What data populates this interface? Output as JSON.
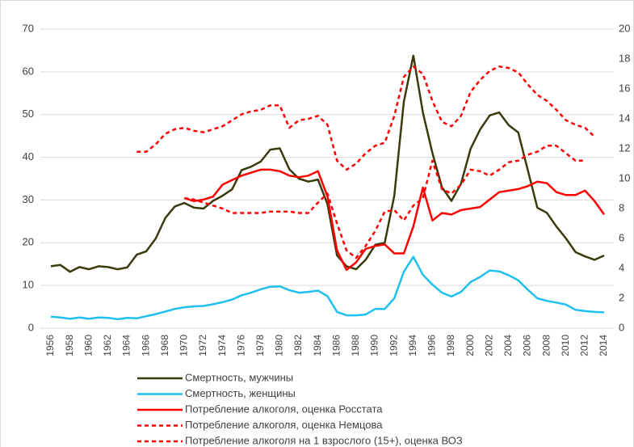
{
  "chart_data": {
    "type": "line",
    "categories": [
      "1956",
      null,
      "1958",
      null,
      "1960",
      null,
      "1962",
      null,
      "1964",
      null,
      "1966",
      null,
      "1968",
      null,
      "1970",
      null,
      "1972",
      null,
      "1974",
      null,
      "1976",
      null,
      "1978",
      null,
      "1980",
      null,
      "1982",
      null,
      "1984",
      null,
      "1986",
      null,
      "1988",
      null,
      "1990",
      null,
      "1992",
      null,
      "1994",
      null,
      "1996",
      null,
      "1998",
      null,
      "2000",
      null,
      "2002",
      null,
      "2004",
      null,
      "2006",
      null,
      "2008",
      null,
      "2010",
      null,
      "2012",
      null,
      "2014"
    ],
    "series": [
      {
        "name": "Смертность, мужчины",
        "color": "#3b3a0c",
        "dash": "solid",
        "values": [
          14.5,
          14.8,
          13.2,
          14.3,
          13.8,
          14.5,
          14.3,
          13.8,
          14.2,
          17.2,
          18.0,
          21.0,
          25.8,
          28.5,
          29.3,
          28.2,
          28.0,
          29.8,
          31.0,
          32.5,
          37.0,
          37.8,
          39.0,
          41.8,
          42.1,
          37.2,
          35.0,
          34.3,
          34.8,
          29.0,
          17.0,
          14.5,
          13.8,
          16.0,
          19.5,
          20.0,
          31.0,
          53.0,
          63.8,
          50.5,
          41.0,
          33.0,
          29.8,
          33.8,
          42.0,
          46.5,
          49.8,
          50.5,
          47.5,
          45.8,
          37.0,
          28.2,
          27.0,
          23.8,
          21.0,
          17.8,
          16.8,
          16.0,
          17.0
        ]
      },
      {
        "name": "Смертность, женщины",
        "color": "#1fc0f0",
        "dash": "solid",
        "values": [
          2.7,
          2.5,
          2.2,
          2.5,
          2.2,
          2.5,
          2.4,
          2.1,
          2.4,
          2.3,
          2.8,
          3.3,
          3.9,
          4.5,
          4.9,
          5.1,
          5.2,
          5.6,
          6.1,
          6.7,
          7.7,
          8.3,
          9.1,
          9.7,
          9.8,
          8.9,
          8.3,
          8.5,
          8.8,
          7.5,
          3.8,
          3.0,
          3.0,
          3.2,
          4.5,
          4.5,
          7.0,
          13.2,
          16.7,
          12.5,
          10.2,
          8.3,
          7.4,
          8.5,
          10.8,
          12.0,
          13.5,
          13.3,
          12.4,
          11.2,
          9.0,
          7.0,
          6.4,
          6.0,
          5.5,
          4.3,
          4.0,
          3.8,
          3.7
        ]
      },
      {
        "name": "Потребление алкоголя, оценка Росстата",
        "color": "#ff0000",
        "dash": "solid",
        "axis": "y2",
        "values": [
          null,
          null,
          null,
          null,
          null,
          null,
          null,
          null,
          null,
          null,
          null,
          null,
          null,
          null,
          8.7,
          8.5,
          8.6,
          8.8,
          9.6,
          9.9,
          10.2,
          10.4,
          10.6,
          10.6,
          10.5,
          10.2,
          10.1,
          10.2,
          10.5,
          8.8,
          5.2,
          3.9,
          4.4,
          5.3,
          5.5,
          5.6,
          5.0,
          5.0,
          6.8,
          9.4,
          7.2,
          7.7,
          7.6,
          7.9,
          8.0,
          8.1,
          8.6,
          9.1,
          9.2,
          9.3,
          9.5,
          9.8,
          9.7,
          9.1,
          8.9,
          8.9,
          9.2,
          8.5,
          7.6
        ]
      },
      {
        "name": "Потребление алкоголя, оценка Немцова",
        "color": "#ff0000",
        "dash": "dashed",
        "axis": "y2",
        "values": [
          null,
          null,
          null,
          null,
          null,
          null,
          null,
          null,
          null,
          11.8,
          11.8,
          12.3,
          13.0,
          13.3,
          13.4,
          13.2,
          13.1,
          13.3,
          13.5,
          13.9,
          14.3,
          14.5,
          14.6,
          14.9,
          14.9,
          13.4,
          13.9,
          14.0,
          14.2,
          13.6,
          11.2,
          10.6,
          11.0,
          11.7,
          12.2,
          12.4,
          14.2,
          16.8,
          17.5,
          17.0,
          15.2,
          13.8,
          13.5,
          14.2,
          15.8,
          16.6,
          17.2,
          17.5,
          17.4,
          17.1,
          16.3,
          15.6,
          15.2,
          14.6,
          13.9,
          13.6,
          13.4,
          12.8,
          null
        ]
      },
      {
        "name": "Потребление алкоголя на 1 взрослого (15+), оценка ВОЗ",
        "color": "#ff0000",
        "dash": "dashed",
        "axis": "y2",
        "values": [
          null,
          null,
          null,
          null,
          null,
          null,
          null,
          null,
          null,
          null,
          null,
          null,
          null,
          null,
          8.7,
          8.6,
          8.4,
          8.2,
          8.0,
          7.7,
          7.7,
          7.7,
          7.7,
          7.8,
          7.8,
          7.8,
          7.7,
          7.7,
          8.4,
          9.0,
          7.0,
          5.2,
          4.7,
          5.5,
          6.5,
          7.8,
          7.9,
          7.2,
          8.2,
          8.7,
          11.2,
          9.3,
          9.0,
          9.6,
          10.6,
          10.5,
          10.2,
          10.6,
          11.1,
          11.2,
          11.6,
          11.8,
          12.2,
          12.2,
          11.7,
          11.2,
          11.2,
          null,
          null
        ]
      }
    ],
    "ylim": [
      0,
      70
    ],
    "yticks": [
      0,
      10,
      20,
      30,
      40,
      50,
      60,
      70
    ],
    "y2lim": [
      0,
      20
    ],
    "y2ticks": [
      0,
      2,
      4,
      6,
      8,
      10,
      12,
      14,
      16,
      18,
      20
    ],
    "grid": true,
    "legend": "bottom"
  }
}
